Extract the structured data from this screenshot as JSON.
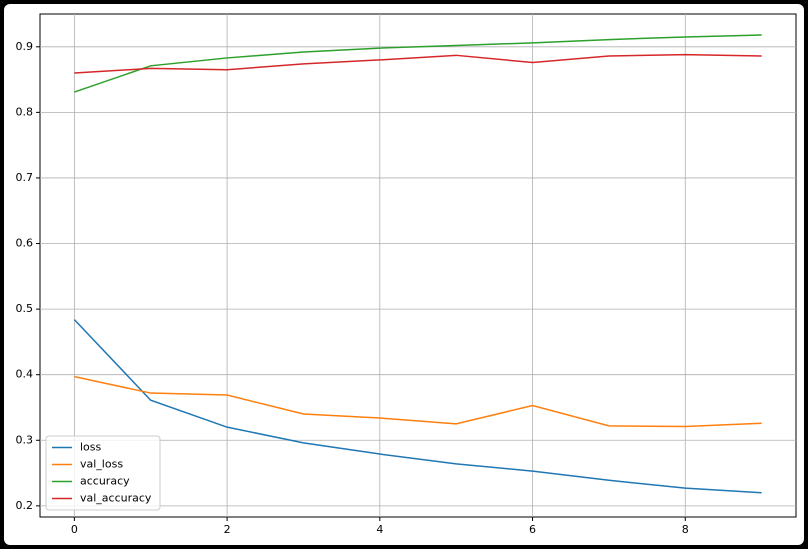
{
  "chart_data": {
    "type": "line",
    "x": [
      0,
      1,
      2,
      3,
      4,
      5,
      6,
      7,
      8,
      9
    ],
    "series": [
      {
        "name": "loss",
        "color": "#1f77b4",
        "values": [
          0.484,
          0.361,
          0.32,
          0.296,
          0.279,
          0.264,
          0.253,
          0.239,
          0.227,
          0.22
        ]
      },
      {
        "name": "val_loss",
        "color": "#ff7f0e",
        "values": [
          0.397,
          0.372,
          0.369,
          0.34,
          0.334,
          0.325,
          0.353,
          0.322,
          0.321,
          0.326
        ]
      },
      {
        "name": "accuracy",
        "color": "#2ca02c",
        "values": [
          0.831,
          0.871,
          0.883,
          0.892,
          0.898,
          0.902,
          0.906,
          0.911,
          0.915,
          0.918
        ]
      },
      {
        "name": "val_accuracy",
        "color": "#d62728",
        "values": [
          0.86,
          0.867,
          0.865,
          0.874,
          0.88,
          0.887,
          0.876,
          0.886,
          0.888,
          0.886
        ]
      }
    ],
    "xlim": [
      -0.45,
      9.45
    ],
    "xticks": [
      0,
      2,
      4,
      6,
      8
    ],
    "ylim": [
      0.183,
      0.95
    ],
    "yticks": [
      0.2,
      0.3,
      0.4,
      0.5,
      0.6,
      0.7,
      0.8,
      0.9
    ],
    "grid": true,
    "legend": "lower left"
  }
}
